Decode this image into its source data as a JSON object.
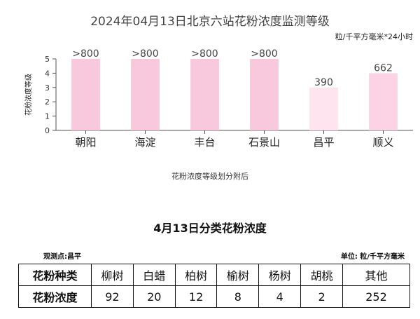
{
  "chart_data": {
    "type": "bar",
    "title": "2024年04月13日北京六站花粉浓度监测等级",
    "unit_label": "粒/千平方毫米*24小时",
    "ylabel": "花粉浓度等级",
    "ylim": [
      0,
      5
    ],
    "yticks": [
      "0",
      "1",
      "2",
      "3",
      "4",
      "5"
    ],
    "categories": [
      "朝阳",
      "海淀",
      "丰台",
      "石景山",
      "昌平",
      "顺义"
    ],
    "values": [
      5,
      5,
      5,
      5,
      3,
      4
    ],
    "data_labels": [
      ">800",
      ">800",
      ">800",
      ">800",
      "390",
      "662"
    ],
    "bar_colors": [
      "#f8c8dc",
      "#f8c8dc",
      "#f8c8dc",
      "#f8c8dc",
      "#fde4ee",
      "#fbd3e4"
    ],
    "grid": false,
    "note": "花粉浓度等级划分附后"
  },
  "table": {
    "title": "4月13日分类花粉浓度",
    "station": "观测点:昌平",
    "unit": "单位: 粒/千平方毫米",
    "row1_header": "花粉种类",
    "row2_header": "花粉浓度",
    "types": [
      "柳树",
      "白蜡",
      "柏树",
      "榆树",
      "杨树",
      "胡桃",
      "其他"
    ],
    "values": [
      "92",
      "20",
      "12",
      "8",
      "4",
      "2",
      "252"
    ]
  }
}
